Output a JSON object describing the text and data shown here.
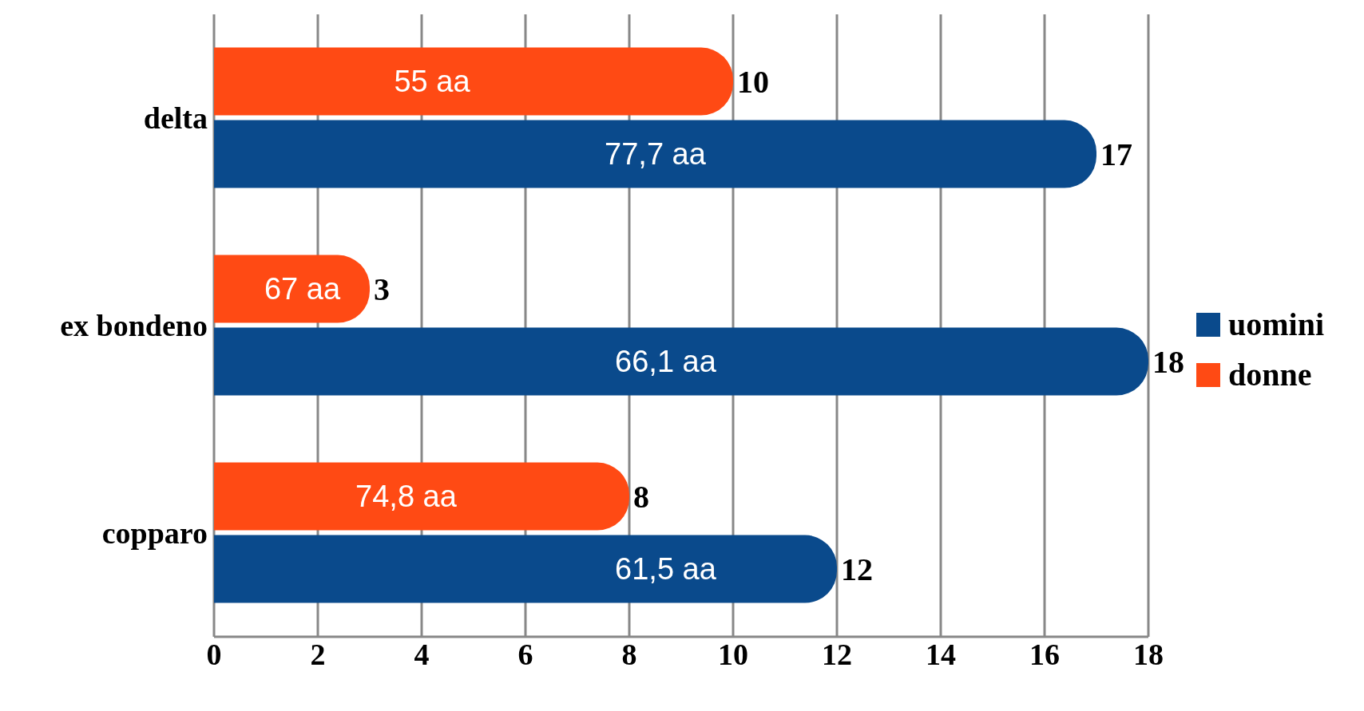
{
  "chart_data": {
    "type": "bar",
    "orientation": "horizontal",
    "categories": [
      "delta",
      "ex bondeno",
      "copparo"
    ],
    "series": [
      {
        "name": "uomini",
        "color": "#0a4a8c",
        "values": [
          17,
          18,
          12
        ]
      },
      {
        "name": "donne",
        "color": "#ff4a14",
        "values": [
          10,
          3,
          8
        ]
      }
    ],
    "xlim": [
      0,
      18
    ],
    "xticks": [
      0,
      2,
      4,
      6,
      8,
      10,
      12,
      14,
      16,
      18
    ],
    "grid": "x",
    "legend": "right",
    "data_labels": true,
    "annotations": [
      {
        "text": "77,7 aa",
        "x": 8.5,
        "y": "delta"
      },
      {
        "text": "66,1 aa",
        "x": 8.7,
        "y": "ex bondeno"
      },
      {
        "text": "61,5 aa",
        "x": 8.7,
        "y": "copparo"
      },
      {
        "text": "55 aa",
        "x": 4.2,
        "y": "delta"
      },
      {
        "text": "67 aa",
        "x": 1.7,
        "y": "ex bondeno"
      },
      {
        "text": "74,8 aa",
        "x": 3.7,
        "y": "copparo"
      }
    ]
  }
}
